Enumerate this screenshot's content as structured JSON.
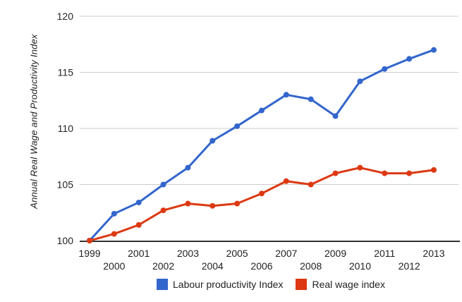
{
  "chart_data": {
    "type": "line",
    "title": "",
    "xlabel": "",
    "ylabel": "Annual Real Wage and Productivity Index",
    "x": [
      1999,
      2000,
      2001,
      2002,
      2003,
      2004,
      2005,
      2006,
      2007,
      2008,
      2009,
      2010,
      2011,
      2012,
      2013
    ],
    "series": [
      {
        "name": "Labour productivity Index",
        "color": "#3366CC",
        "values": [
          100,
          102.4,
          103.4,
          105.0,
          106.5,
          108.9,
          110.2,
          111.6,
          113.0,
          112.6,
          111.1,
          114.2,
          115.3,
          116.2,
          117.0
        ]
      },
      {
        "name": "Real wage index",
        "color": "#DC3912",
        "values": [
          100,
          100.6,
          101.4,
          102.7,
          103.3,
          103.1,
          103.3,
          104.2,
          105.3,
          105.0,
          106.0,
          106.5,
          106.0,
          106.0,
          106.3
        ]
      }
    ],
    "ylim": [
      100,
      120
    ],
    "yticks": [
      100,
      105,
      110,
      115,
      120
    ],
    "grid": true,
    "grid_color": "#cccccc",
    "baseline_color": "#333333",
    "label_color": "#222222",
    "legend_position": "bottom"
  }
}
